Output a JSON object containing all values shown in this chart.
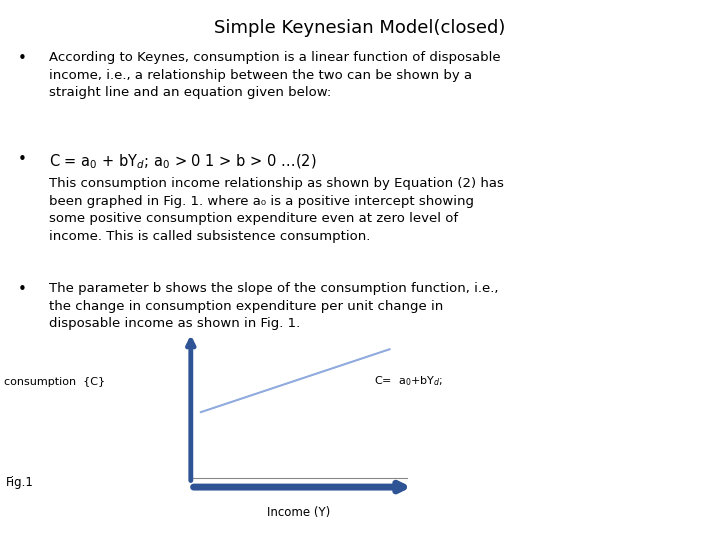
{
  "title": "Simple Keynesian Model(closed)",
  "title_fontsize": 13,
  "background_color": "#ffffff",
  "text_color": "#000000",
  "bullet1": "According to Keynes, consumption is a linear function of disposable\nincome, i.e., a relationship between the two can be shown by a\nstraight line and an equation given below:",
  "bullet2_eq": "C = a$_0$ + bY$_d$; a$_0$ > 0 1 > b > 0 …(2)",
  "bullet2_body": "This consumption income relationship as shown by Equation (2) has\nbeen graphed in Fig. 1. where a₀ is a positive intercept showing\nsome positive consumption expenditure even at zero level of\nincome. This is called subsistence consumption.",
  "bullet3": "The parameter b shows the slope of the consumption function, i.e.,\nthe change in consumption expenditure per unit change in\ndisposable income as shown in Fig. 1.",
  "fig_label": "Fig.1",
  "ylabel_fig": "consumption  {C}",
  "xlabel_fig": "Income (Y)",
  "eq_label_graph": "C=  a$_0$+bY$_d$;",
  "axis_color": "#2F5496",
  "line_color": "#8FAADC",
  "body_fontsize": 9.5,
  "eq_fontsize": 10.5,
  "bullet_fontsize": 11
}
